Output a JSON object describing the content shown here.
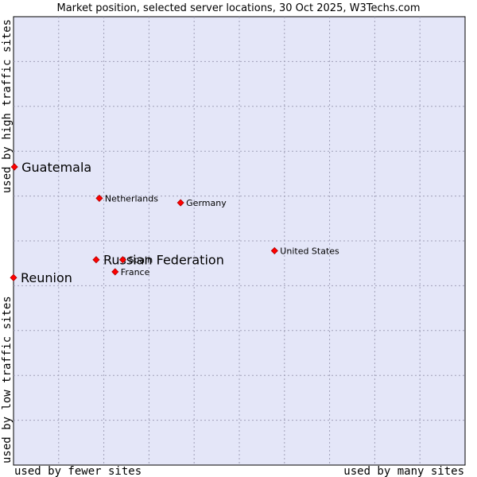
{
  "chart_data": {
    "type": "scatter",
    "title": "Market position, selected server locations, 30 Oct 2025, W3Techs.com",
    "xlabel_left": "used by fewer sites",
    "xlabel_right": "used by many sites",
    "ylabel_bottom": "used by low traffic sites",
    "ylabel_top": "used by high traffic sites",
    "xlim": [
      0,
      100
    ],
    "ylim": [
      0,
      100
    ],
    "grid": true,
    "colors": {
      "plot_background": "#e4e6f8",
      "marker": "#ff0000",
      "marker_edge": "#b00000"
    },
    "points": [
      {
        "label": "Guatemala",
        "x": 0.2,
        "y": 66.5,
        "size": "large"
      },
      {
        "label": "Netherlands",
        "x": 19.0,
        "y": 59.5,
        "size": "small"
      },
      {
        "label": "Germany",
        "x": 37.0,
        "y": 58.5,
        "size": "small"
      },
      {
        "label": "United States",
        "x": 57.8,
        "y": 47.8,
        "size": "small"
      },
      {
        "label": "Russian Federation",
        "x": 18.3,
        "y": 45.8,
        "size": "large"
      },
      {
        "label": "Spain",
        "x": 24.2,
        "y": 45.8,
        "size": "small"
      },
      {
        "label": "France",
        "x": 22.5,
        "y": 43.1,
        "size": "small"
      },
      {
        "label": "Reunion",
        "x": 0.0,
        "y": 41.8,
        "size": "large"
      }
    ]
  }
}
